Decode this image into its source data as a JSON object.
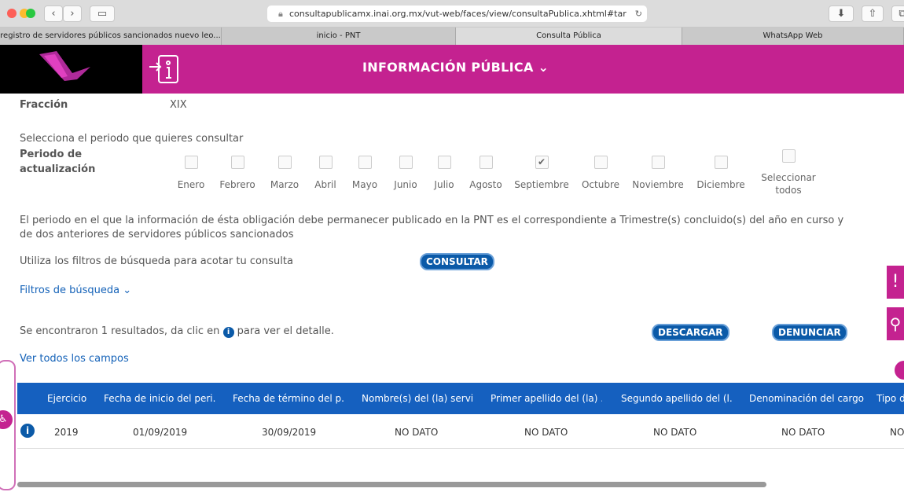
{
  "browser": {
    "url": "consultapublicamx.inai.org.mx/vut-web/faces/view/consultaPublica.xhtml#tar",
    "tabs": [
      "registro de servidores públicos sancionados nuevo leo...",
      "inicio - PNT",
      "Consulta Pública",
      "WhatsApp Web"
    ],
    "active_tab": 2
  },
  "header": {
    "title": "INFORMACIÓN PÚBLICA",
    "brand_color": "#c42290"
  },
  "fraccion": {
    "label": "Fracción",
    "value": "XIX"
  },
  "periodo": {
    "prompt": "Selecciona el periodo que quieres consultar",
    "label": "Periodo de actualización",
    "months": [
      {
        "name": "Enero",
        "checked": false
      },
      {
        "name": "Febrero",
        "checked": false
      },
      {
        "name": "Marzo",
        "checked": false
      },
      {
        "name": "Abril",
        "checked": false
      },
      {
        "name": "Mayo",
        "checked": false
      },
      {
        "name": "Junio",
        "checked": false
      },
      {
        "name": "Julio",
        "checked": false
      },
      {
        "name": "Agosto",
        "checked": false
      },
      {
        "name": "Septiembre",
        "checked": true
      },
      {
        "name": "Octubre",
        "checked": false
      },
      {
        "name": "Noviembre",
        "checked": false
      },
      {
        "name": "Diciembre",
        "checked": false
      }
    ],
    "select_all": "Seleccionar todos"
  },
  "note": "El periodo en el que la información de ésta obligación debe permanecer publicado en la PNT es el correspondiente a Trimestre(s) concluido(s) del año en curso y de dos anteriores de servidores públicos sancionados",
  "filters": {
    "hint": "Utiliza los filtros de búsqueda para acotar tu consulta",
    "consultar": "CONSULTAR",
    "toggle": "Filtros de búsqueda"
  },
  "results": {
    "text_before": "Se encontraron 1 resultados, da clic en",
    "text_after": "para ver el detalle.",
    "descargar": "DESCARGAR",
    "denunciar": "DENUNCIAR",
    "ver_todos": "Ver todos los campos"
  },
  "table": {
    "headers": [
      "Ejercicio",
      "Fecha de inicio del peri...",
      "Fecha de término del p...",
      "Nombre(s) del (la) servi...",
      "Primer apellido del (la) ...",
      "Segundo apellido del (l...",
      "Denominación del cargo",
      "Tipo d"
    ],
    "rows": [
      [
        "2019",
        "01/09/2019",
        "30/09/2019",
        "NO DATO",
        "NO DATO",
        "NO DATO",
        "NO DATO",
        "NO"
      ]
    ]
  }
}
